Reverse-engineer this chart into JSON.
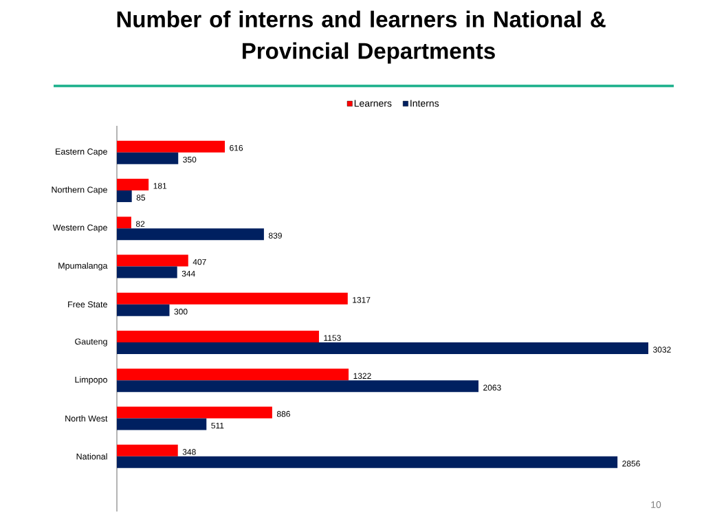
{
  "chart_data": {
    "type": "bar",
    "orientation": "horizontal",
    "title": "Number of interns and learners in National & Provincial Departments",
    "categories": [
      "Eastern Cape",
      "Northern Cape",
      "Western Cape",
      "Mpumalanga",
      "Free State",
      "Gauteng",
      "Limpopo",
      "North West",
      "National"
    ],
    "series": [
      {
        "name": "Learners",
        "color": "#ff0000",
        "values": [
          616,
          181,
          82,
          407,
          1317,
          1153,
          1322,
          886,
          348
        ]
      },
      {
        "name": "Interns",
        "color": "#002060",
        "values": [
          350,
          85,
          839,
          344,
          300,
          3032,
          2063,
          511,
          2856
        ]
      }
    ],
    "data_labels": true,
    "legend": "top",
    "tick_labels": "y",
    "annotations": [
      "10"
    ]
  }
}
